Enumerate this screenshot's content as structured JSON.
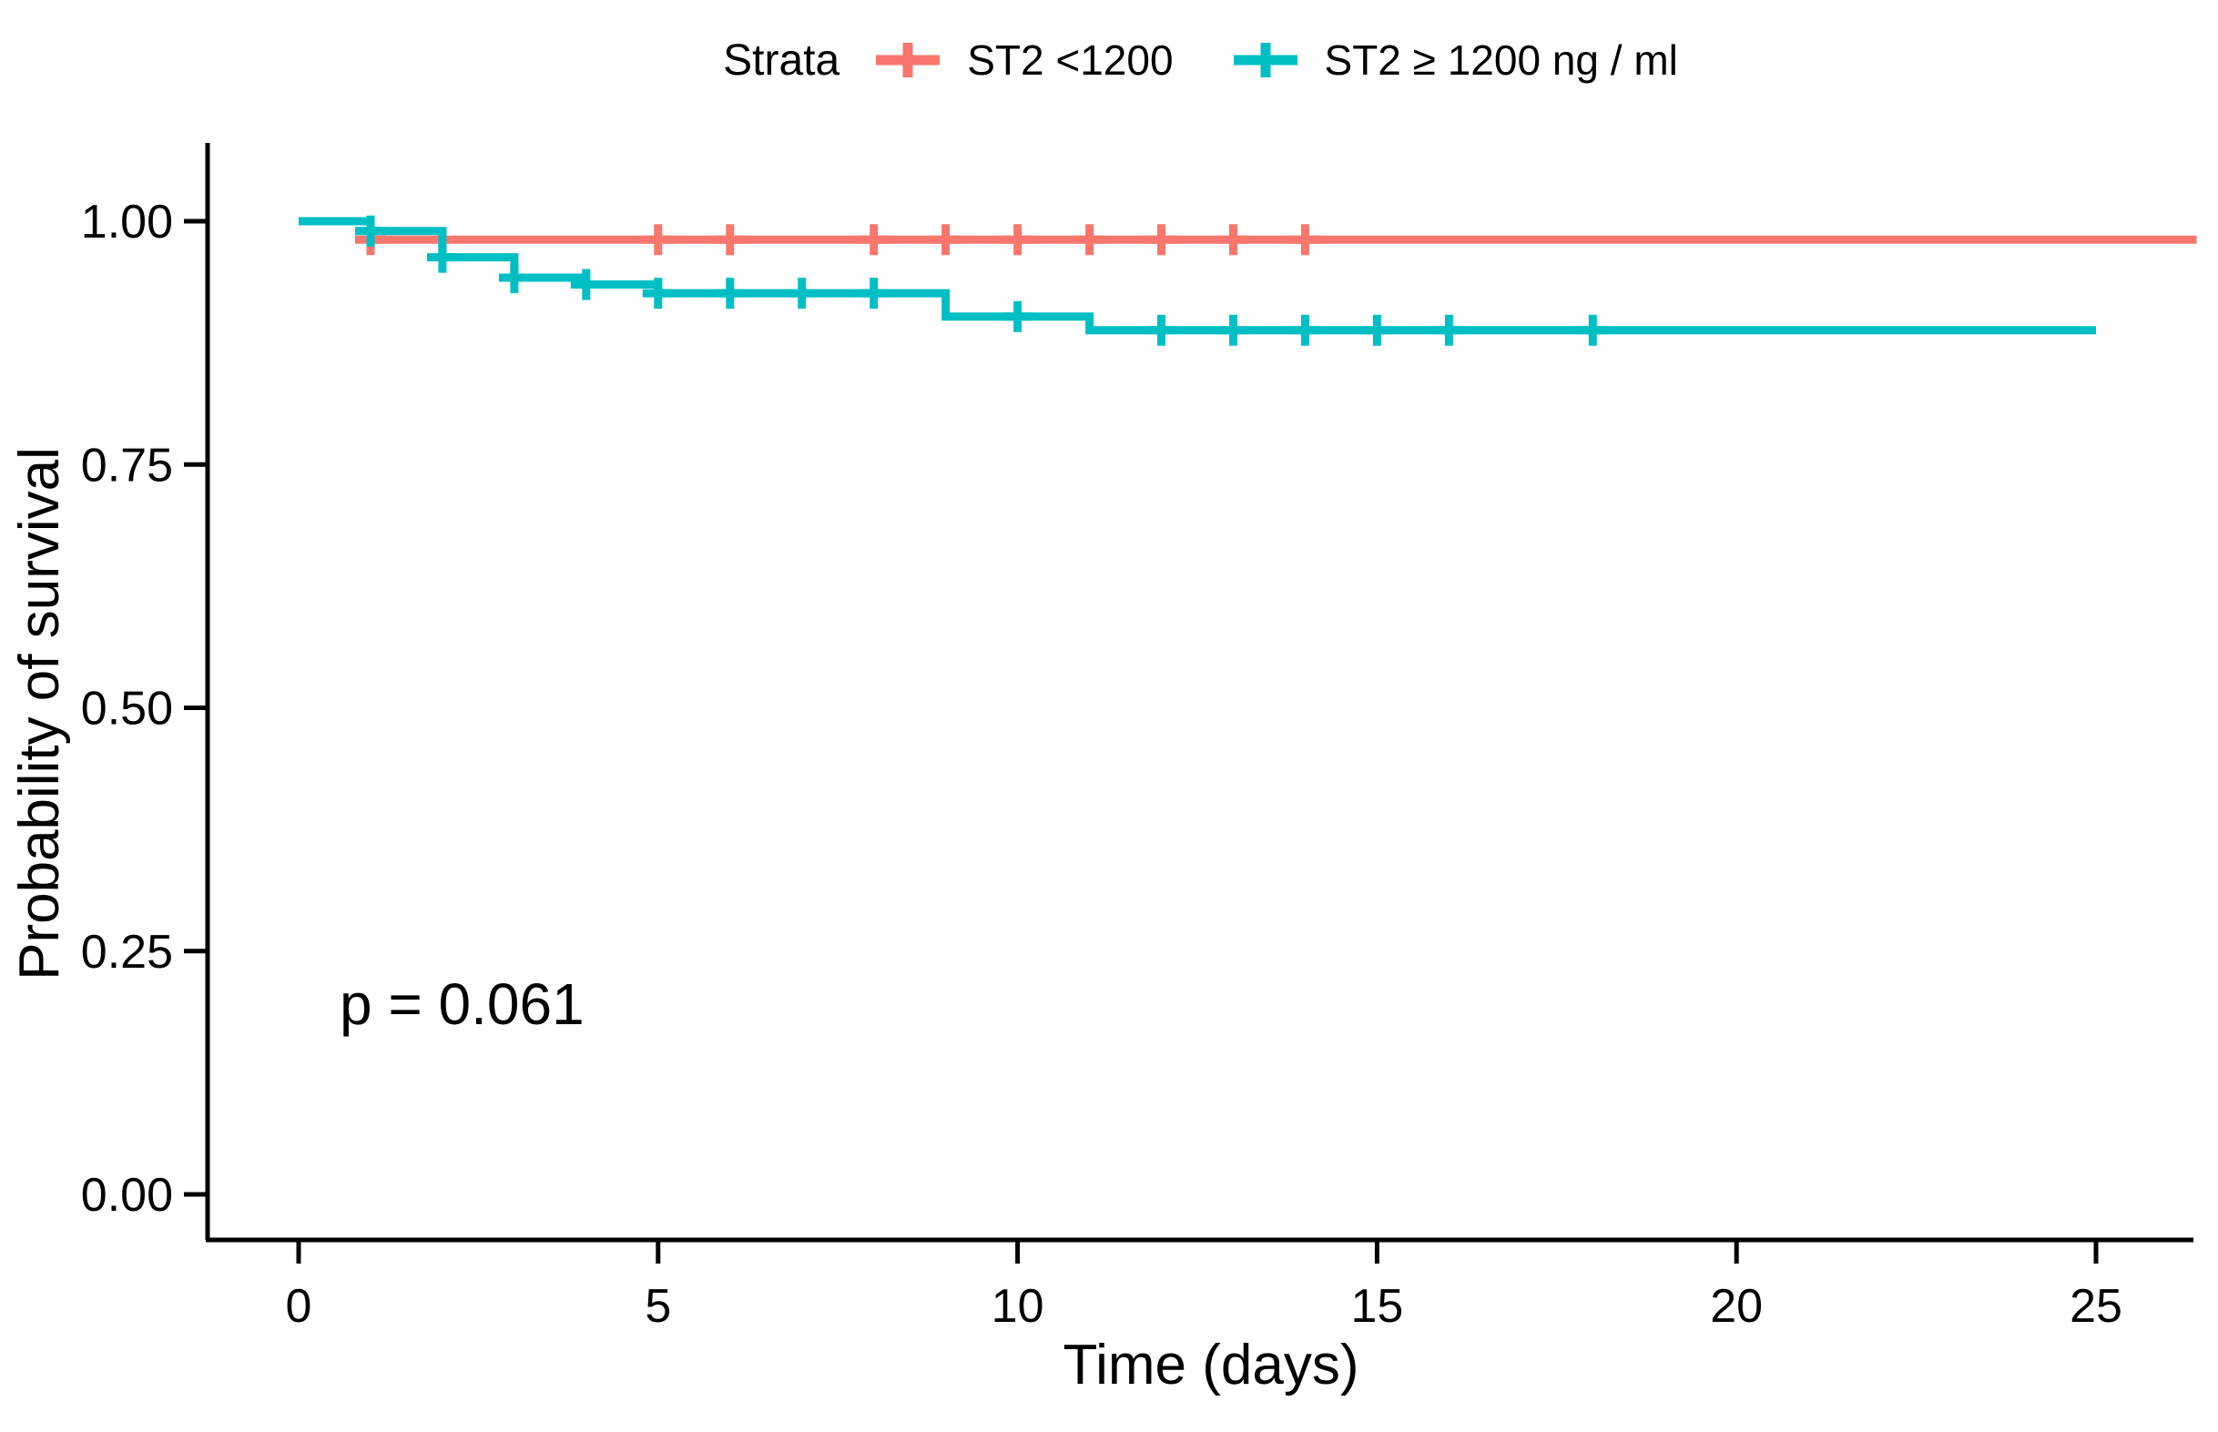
{
  "chart_data": {
    "type": "line",
    "subtype": "kaplan-meier-step",
    "title": "",
    "legend_title": "Strata",
    "legend_position": "top",
    "xlabel": "Time (days)",
    "ylabel": "Probability of survival",
    "annotation": "p = 0.061",
    "xlim": [
      0,
      26.5
    ],
    "ylim": [
      0,
      1.0
    ],
    "grid": false,
    "x_ticks": [
      {
        "label": "0",
        "value": 0
      },
      {
        "label": "5",
        "value": 5
      },
      {
        "label": "10",
        "value": 10
      },
      {
        "label": "15",
        "value": 15
      },
      {
        "label": "20",
        "value": 20
      },
      {
        "label": "25",
        "value": 25
      }
    ],
    "y_ticks": [
      {
        "label": "0.00",
        "value": 0.0
      },
      {
        "label": "0.25",
        "value": 0.25
      },
      {
        "label": "0.50",
        "value": 0.5
      },
      {
        "label": "0.75",
        "value": 0.75
      },
      {
        "label": "1.00",
        "value": 1.0
      }
    ],
    "series": [
      {
        "name": "ST2 <1200",
        "color": "#F8766D",
        "steps": [
          [
            0,
            1.0
          ],
          [
            1,
            1.0
          ],
          [
            1,
            0.981
          ],
          [
            26.4,
            0.981
          ]
        ],
        "censors": [
          [
            1,
            0.981
          ],
          [
            5,
            0.981
          ],
          [
            6,
            0.981
          ],
          [
            8,
            0.981
          ],
          [
            9,
            0.981
          ],
          [
            10,
            0.981
          ],
          [
            11,
            0.981
          ],
          [
            12,
            0.981
          ],
          [
            13,
            0.981
          ],
          [
            14,
            0.981
          ]
        ]
      },
      {
        "name": "ST2 ≥ 1200 ng / ml",
        "color": "#00BFC4",
        "steps": [
          [
            0,
            1.0
          ],
          [
            1,
            1.0
          ],
          [
            1,
            0.99
          ],
          [
            2,
            0.99
          ],
          [
            2,
            0.963
          ],
          [
            3,
            0.963
          ],
          [
            3,
            0.942
          ],
          [
            4,
            0.942
          ],
          [
            4,
            0.935
          ],
          [
            5,
            0.935
          ],
          [
            5,
            0.926
          ],
          [
            9,
            0.926
          ],
          [
            9,
            0.902
          ],
          [
            11,
            0.902
          ],
          [
            11,
            0.888
          ],
          [
            25,
            0.888
          ]
        ],
        "censors": [
          [
            1,
            0.99
          ],
          [
            2,
            0.963
          ],
          [
            3,
            0.942
          ],
          [
            4,
            0.935
          ],
          [
            5,
            0.926
          ],
          [
            6,
            0.926
          ],
          [
            7,
            0.926
          ],
          [
            8,
            0.926
          ],
          [
            10,
            0.902
          ],
          [
            12,
            0.888
          ],
          [
            13,
            0.888
          ],
          [
            14,
            0.888
          ],
          [
            15,
            0.888
          ],
          [
            16,
            0.888
          ],
          [
            18,
            0.888
          ]
        ]
      }
    ]
  }
}
